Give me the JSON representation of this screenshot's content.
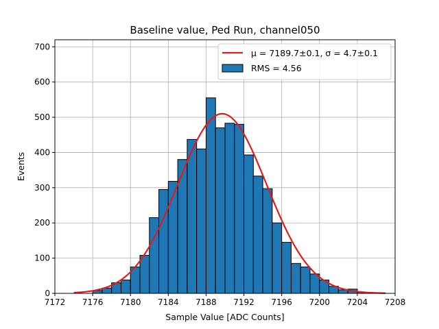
{
  "chart_data": {
    "type": "bar",
    "title": "Baseline value, Ped Run, channel050",
    "xlabel": "Sample Value [ADC Counts]",
    "ylabel": "Events",
    "xlim": [
      7172,
      7208
    ],
    "ylim": [
      0,
      720
    ],
    "xticks": [
      7172,
      7176,
      7180,
      7184,
      7188,
      7192,
      7196,
      7200,
      7204,
      7208
    ],
    "yticks": [
      0,
      100,
      200,
      300,
      400,
      500,
      600,
      700
    ],
    "grid": true,
    "legend_position": "top-right",
    "bar_color": "#1f77b4",
    "fit_color": "#e31a1c",
    "histogram": {
      "name": "RMS = 4.56",
      "bin_width": 1,
      "bin_edges_start": 7176,
      "counts": [
        8,
        15,
        30,
        38,
        75,
        108,
        215,
        295,
        318,
        380,
        437,
        410,
        555,
        470,
        483,
        480,
        393,
        333,
        297,
        200,
        145,
        85,
        75,
        55,
        38,
        20,
        10,
        12,
        3,
        1
      ]
    },
    "fit": {
      "name": "μ = 7189.7±0.1, σ = 4.7±0.1",
      "mu": 7189.7,
      "sigma": 4.7,
      "amplitude": 510,
      "x_range": [
        7174,
        7207
      ]
    }
  }
}
